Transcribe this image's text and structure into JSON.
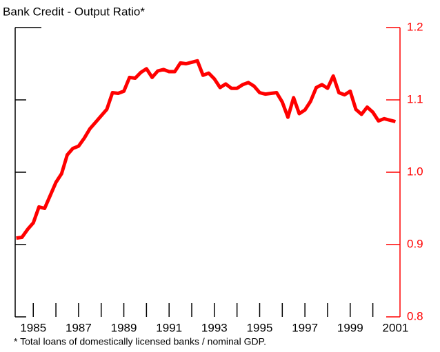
{
  "chart_data": {
    "type": "line",
    "title": "Bank Credit - Output Ratio*",
    "footnote": "* Total loans of domestically licensed banks / nominal GDP.",
    "x": [
      1984.25,
      1984.5,
      1984.75,
      1985,
      1985.25,
      1985.5,
      1985.75,
      1986,
      1986.25,
      1986.5,
      1986.75,
      1987,
      1987.25,
      1987.5,
      1987.75,
      1988,
      1988.25,
      1988.5,
      1988.75,
      1989,
      1989.25,
      1989.5,
      1989.75,
      1990,
      1990.25,
      1990.5,
      1990.75,
      1991,
      1991.25,
      1991.5,
      1991.75,
      1992,
      1992.25,
      1992.5,
      1992.75,
      1993,
      1993.25,
      1993.5,
      1993.75,
      1994,
      1994.25,
      1994.5,
      1994.75,
      1995,
      1995.25,
      1995.5,
      1995.75,
      1996,
      1996.25,
      1996.5,
      1996.75,
      1997,
      1997.25,
      1997.5,
      1997.75,
      1998,
      1998.25,
      1998.5,
      1998.75,
      1999,
      1999.25,
      1999.5,
      1999.75,
      2000,
      2000.25,
      2000.5,
      2000.75,
      2001
    ],
    "series": [
      {
        "color": "#ff0000",
        "values": [
          0.909,
          0.91,
          0.921,
          0.93,
          0.952,
          0.95,
          0.968,
          0.986,
          0.998,
          1.024,
          1.033,
          1.036,
          1.047,
          1.06,
          1.069,
          1.078,
          1.087,
          1.11,
          1.109,
          1.112,
          1.131,
          1.13,
          1.138,
          1.143,
          1.131,
          1.14,
          1.142,
          1.139,
          1.139,
          1.151,
          1.15,
          1.152,
          1.154,
          1.134,
          1.137,
          1.129,
          1.117,
          1.122,
          1.116,
          1.116,
          1.121,
          1.124,
          1.119,
          1.11,
          1.108,
          1.109,
          1.11,
          1.097,
          1.076,
          1.103,
          1.081,
          1.086,
          1.098,
          1.117,
          1.121,
          1.116,
          1.133,
          1.11,
          1.107,
          1.112,
          1.087,
          1.08,
          1.09,
          1.083,
          1.071,
          1.074,
          1.072,
          1.07
        ]
      }
    ],
    "xlim": [
      1984.2,
      2001.2
    ],
    "xticks": [
      1985,
      1987,
      1989,
      1991,
      1993,
      1995,
      1997,
      1999,
      2001
    ],
    "xminor_ticks": [
      1986,
      1988,
      1990,
      1992,
      1994,
      1996,
      1998,
      2000
    ],
    "ylim": [
      0.8,
      1.2
    ],
    "yticks": [
      0.8,
      0.9,
      {
        "value": 1,
        "label": "1.0"
      },
      1.1,
      1.2
    ],
    "axis_color": "#ff0000"
  }
}
